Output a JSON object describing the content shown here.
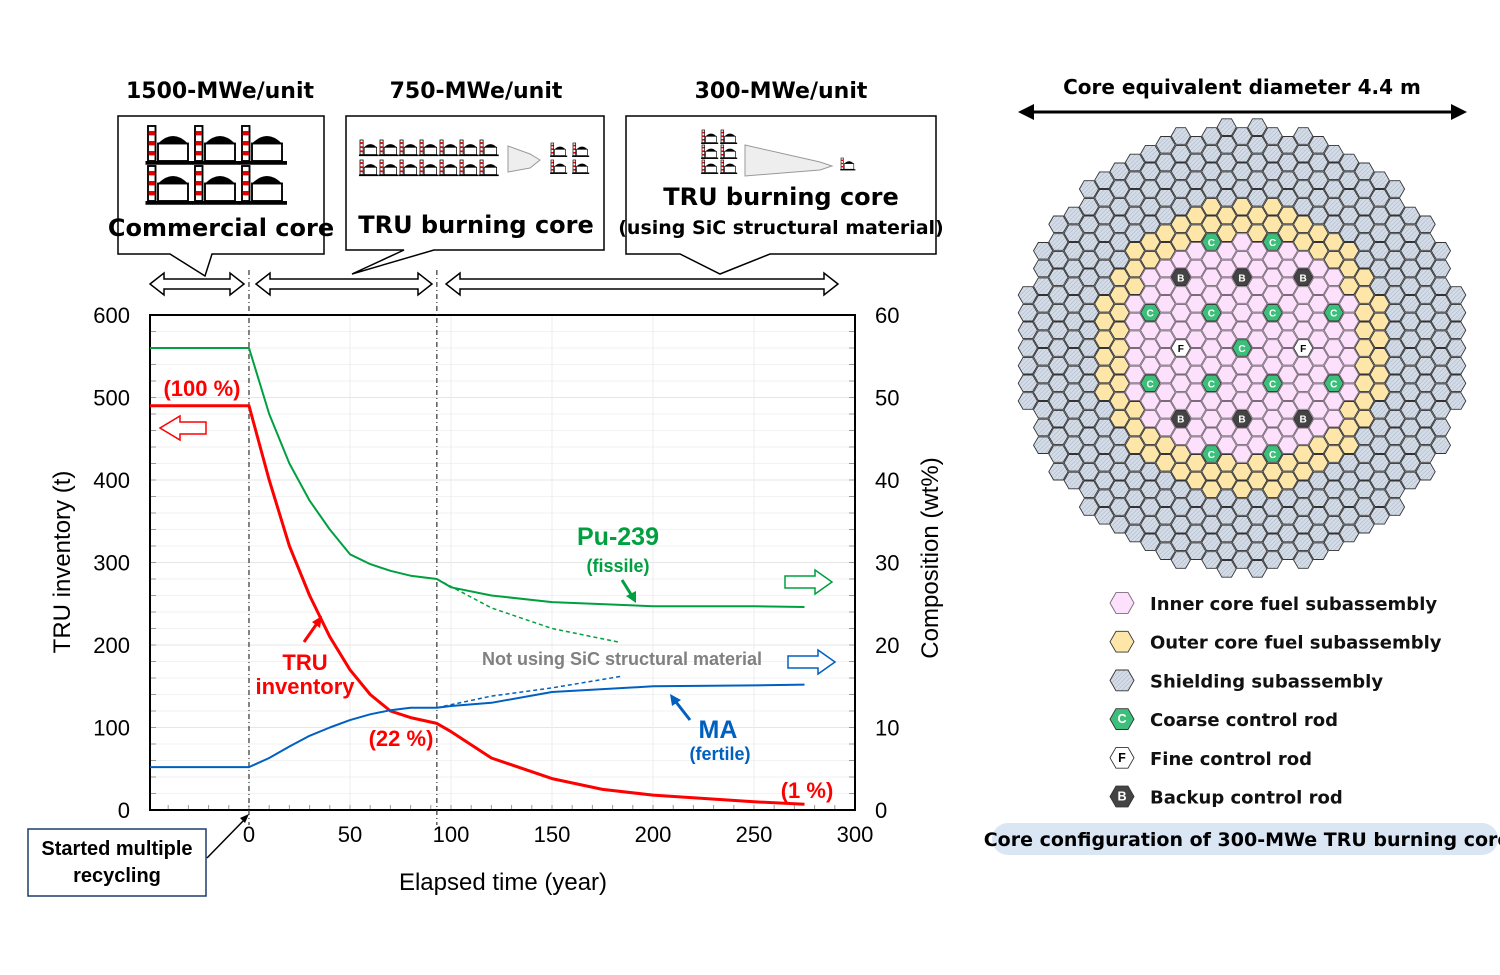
{
  "timeline": {
    "phases": [
      {
        "power": "1500-MWe/unit",
        "core": "Commercial core",
        "subtitle": ""
      },
      {
        "power": "750-MWe/unit",
        "core": "TRU burning core",
        "subtitle": ""
      },
      {
        "power": "300-MWe/unit",
        "core": "TRU burning core",
        "subtitle": "(using SiC structural material)"
      }
    ]
  },
  "chart_data": {
    "type": "line",
    "xlabel": "Elapsed time (year)",
    "ylabel": "TRU inventory (t)",
    "y2label": "Composition (wt%)",
    "xlim": [
      -49,
      300
    ],
    "ylim": [
      0,
      600
    ],
    "y2lim": [
      0,
      60
    ],
    "xticks": [
      "0",
      "50",
      "100",
      "150",
      "200",
      "250",
      "300"
    ],
    "yticks": [
      "0",
      "100",
      "200",
      "300",
      "400",
      "500",
      "600"
    ],
    "y2ticks": [
      "0",
      "10",
      "20",
      "30",
      "40",
      "50",
      "60"
    ],
    "grid": true,
    "vlines": [
      0,
      93
    ],
    "series": [
      {
        "name": "TRU inventory",
        "axis": "left",
        "color": "#ff0000",
        "style": "solid",
        "x": [
          -49,
          0,
          10,
          20,
          30,
          40,
          50,
          60,
          70,
          80,
          93,
          100,
          120,
          150,
          175,
          200,
          250,
          275
        ],
        "y": [
          490,
          490,
          400,
          320,
          260,
          210,
          170,
          140,
          120,
          112,
          105,
          95,
          63,
          38,
          25,
          18,
          10,
          7
        ]
      },
      {
        "name": "Pu-239",
        "axis": "right",
        "color": "#00a040",
        "style": "solid",
        "x": [
          -49,
          0,
          10,
          20,
          30,
          40,
          50,
          60,
          70,
          80,
          93,
          100,
          120,
          150,
          200,
          250,
          275
        ],
        "y": [
          56,
          56,
          48,
          42,
          37.5,
          34,
          31,
          29.8,
          29,
          28.4,
          28,
          27,
          26,
          25.2,
          24.7,
          24.7,
          24.6
        ]
      },
      {
        "name": "Pu-239 (not using SiC)",
        "axis": "right",
        "color": "#00a040",
        "style": "dashed",
        "x": [
          93,
          120,
          150,
          184
        ],
        "y": [
          28,
          24.5,
          22,
          20.3
        ]
      },
      {
        "name": "MA",
        "axis": "right",
        "color": "#0060c0",
        "style": "solid",
        "x": [
          -49,
          0,
          10,
          20,
          30,
          40,
          50,
          60,
          70,
          80,
          93,
          100,
          120,
          150,
          200,
          250,
          275
        ],
        "y": [
          5.2,
          5.2,
          6.3,
          7.7,
          9,
          10,
          10.9,
          11.6,
          12.1,
          12.4,
          12.4,
          12.6,
          13.0,
          14.3,
          15.0,
          15.1,
          15.2
        ]
      },
      {
        "name": "MA (not using SiC)",
        "axis": "right",
        "color": "#0060c0",
        "style": "dashed",
        "x": [
          93,
          120,
          150,
          184
        ],
        "y": [
          12.4,
          13.8,
          14.8,
          16.2
        ]
      }
    ],
    "annotations": {
      "pct100": "(100 %)",
      "pct22": "(22 %)",
      "pct1": "(1 %)",
      "tru1": "TRU",
      "tru2": "inventory",
      "pu": "Pu-239",
      "pu_sub": "(fissile)",
      "ma": "MA",
      "ma_sub": "(fertile)",
      "nosic": "Not using SiC structural material",
      "start1": "Started multiple",
      "start2": "recycling"
    }
  },
  "core": {
    "diameter_label": "Core equivalent diameter 4.4 m",
    "caption": "Core configuration of 300-MWe TRU burning core",
    "legend": [
      {
        "label": "Inner core fuel subassembly",
        "color": "#fde0fb",
        "letter": ""
      },
      {
        "label": "Outer core fuel subassembly",
        "color": "#fde6a8",
        "letter": ""
      },
      {
        "label": "Shielding subassembly",
        "color": "#d8e0ec",
        "letter": ""
      },
      {
        "label": "Coarse control rod",
        "color": "#3cbf7a",
        "letter": "C"
      },
      {
        "label": "Fine control rod",
        "color": "#ffffff",
        "letter": "F"
      },
      {
        "label": "Backup control rod",
        "color": "#444444",
        "letter": "B"
      }
    ]
  }
}
